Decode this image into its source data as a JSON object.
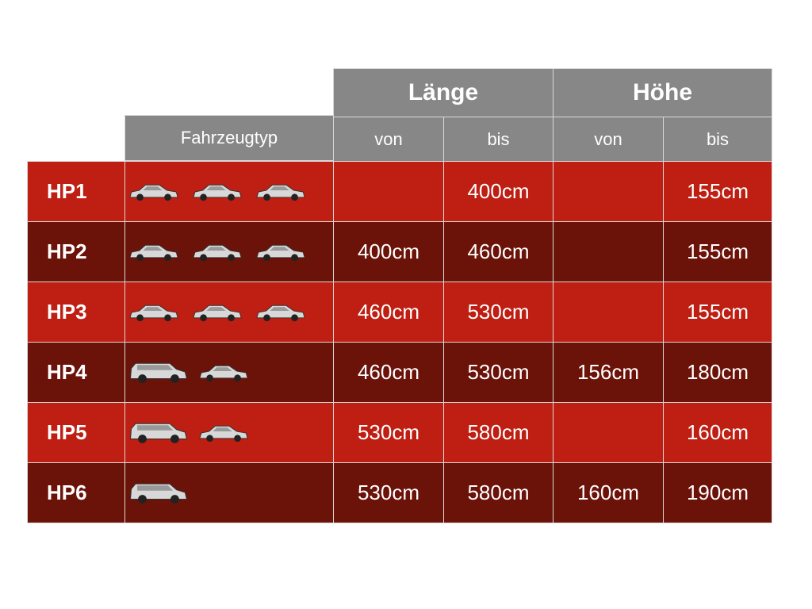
{
  "table": {
    "group_headers": [
      "Länge",
      "Höhe"
    ],
    "sub_headers": [
      "Fahrzeugtyp",
      "von",
      "bis",
      "von",
      "bis"
    ],
    "rows": [
      [
        "HP1",
        null,
        "400cm",
        null,
        "155cm"
      ],
      [
        "HP2",
        "400cm",
        "460cm",
        null,
        "155cm"
      ],
      [
        "HP3",
        "460cm",
        "530cm",
        null,
        "155cm"
      ],
      [
        "HP4",
        "460cm",
        "530cm",
        "156cm",
        "180cm"
      ],
      [
        "HP5",
        "530cm",
        "580cm",
        null,
        "160cm"
      ],
      [
        "HP6",
        "530cm",
        "580cm",
        "160cm",
        "190cm"
      ]
    ]
  }
}
